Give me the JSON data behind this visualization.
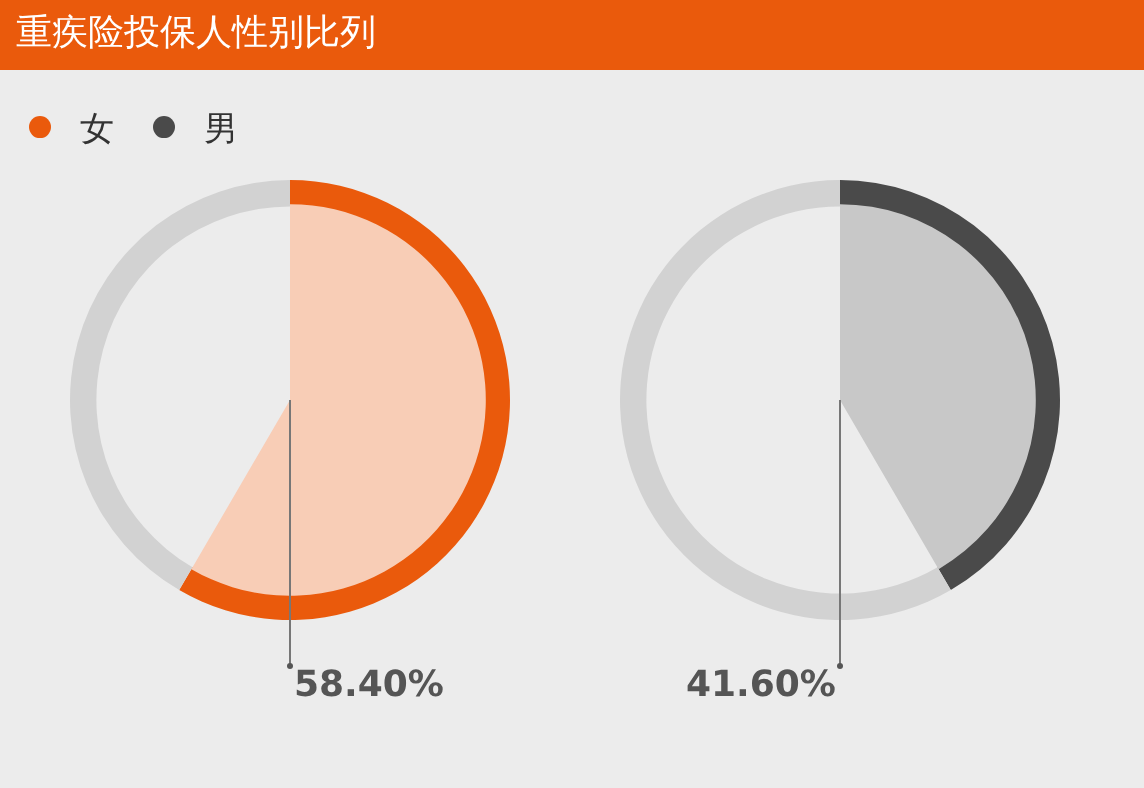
{
  "chart_data": [
    {
      "type": "donut",
      "title": "重疾险投保人性别比列",
      "categories": [
        "女",
        null
      ],
      "values": [
        58.4,
        41.6
      ],
      "colors": [
        "#ea5a0c",
        "#d2d2d2"
      ],
      "value_labels": [
        "58.40%",
        null
      ],
      "legend": "top left"
    },
    {
      "type": "donut",
      "categories": [
        "男",
        null
      ],
      "values": [
        41.6,
        58.4
      ],
      "colors": [
        "#4a4a4a",
        "#d2d2d2"
      ],
      "value_labels": [
        "41.60%",
        null
      ],
      "legend": "top left"
    }
  ]
}
